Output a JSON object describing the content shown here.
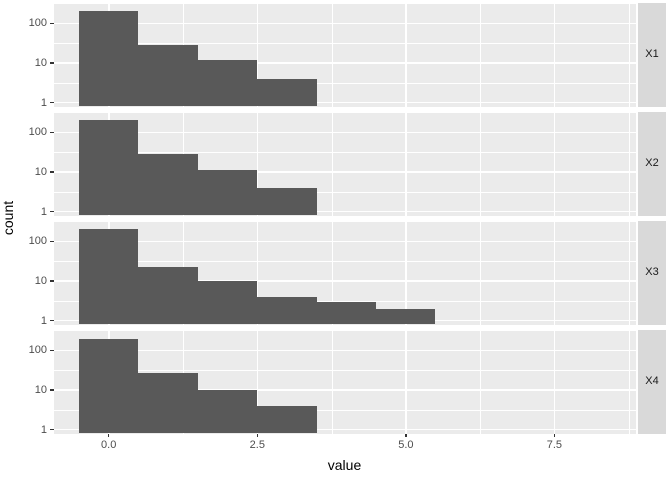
{
  "figure": {
    "x_axis_title": "value",
    "y_axis_title": "count",
    "colors": {
      "background": "#FFFFFF",
      "panel_bg": "#EBEBEB",
      "strip_bg": "#D9D9D9",
      "bar_fill": "#595959",
      "gridline": "#FFFFFF",
      "tick_mark": "#333333",
      "tick_label": "#4D4D4D",
      "axis_title": "#000000",
      "strip_text": "#1A1A1A"
    }
  },
  "chart_data": {
    "type": "bar",
    "subtype": "faceted_histogram",
    "title": "",
    "xlabel": "value",
    "ylabel": "count",
    "y_scale": "log10",
    "legend": "none",
    "grid": "on",
    "facet_position": "right-strips",
    "bin_width": 1,
    "x_domain": [
      -0.929,
      8.864
    ],
    "y_log_domain": [
      -0.1,
      2.51
    ],
    "x_major_ticks": [
      0,
      2.5,
      5,
      7.5
    ],
    "x_tick_labels": [
      "0.0",
      "2.5",
      "5.0",
      "7.5"
    ],
    "x_minor_gridlines": [
      1.25,
      3.75,
      6.25,
      8.75
    ],
    "y_major_ticks": [
      100,
      10,
      1
    ],
    "y_tick_labels": [
      "100",
      "10",
      "1"
    ],
    "y_minor_gridlines": [
      316.23,
      31.623,
      3.1623
    ],
    "facets": [
      {
        "label": "X1",
        "bin_centers": [
          0,
          1,
          2,
          3
        ],
        "counts": [
          200,
          28,
          12,
          4
        ]
      },
      {
        "label": "X2",
        "bin_centers": [
          0,
          1,
          2,
          3
        ],
        "counts": [
          200,
          28,
          11,
          4
        ]
      },
      {
        "label": "X3",
        "bin_centers": [
          0,
          1,
          2,
          3,
          4,
          5
        ],
        "counts": [
          200,
          22,
          10,
          4,
          3,
          2
        ]
      },
      {
        "label": "X4",
        "bin_centers": [
          0,
          1,
          2,
          3
        ],
        "counts": [
          195,
          27,
          10,
          4
        ]
      }
    ]
  }
}
